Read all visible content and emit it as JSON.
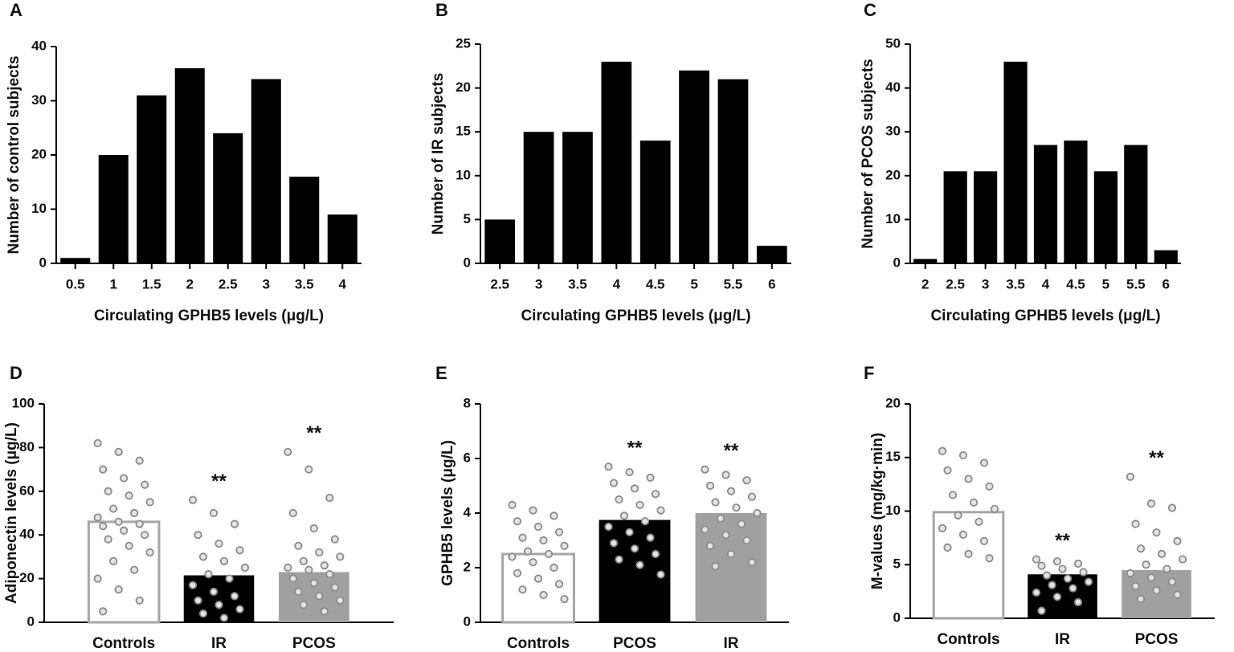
{
  "chart_data": [
    {
      "type": "bar",
      "panel": "A",
      "categories": [
        "0.5",
        "1",
        "1.5",
        "2",
        "2.5",
        "3",
        "3.5",
        "4"
      ],
      "values": [
        1,
        20,
        31,
        36,
        24,
        34,
        16,
        9
      ],
      "color": "#000000",
      "ylim": [
        0,
        40
      ],
      "yticks": [
        0,
        10,
        20,
        30,
        40
      ],
      "xlabel": "Circulating GPHB5 levels (μg/L)",
      "ylabel": "Number of control subjects"
    },
    {
      "type": "bar",
      "panel": "B",
      "categories": [
        "2.5",
        "3",
        "3.5",
        "4",
        "4.5",
        "5",
        "5.5",
        "6"
      ],
      "values": [
        5,
        15,
        15,
        23,
        14,
        22,
        21,
        2
      ],
      "color": "#000000",
      "ylim": [
        0,
        25
      ],
      "yticks": [
        0,
        5,
        10,
        15,
        20,
        25
      ],
      "xlabel": "Circulating GPHB5 levels (μg/L)",
      "ylabel": "Number of IR subjects"
    },
    {
      "type": "bar",
      "panel": "C",
      "categories": [
        "2",
        "2.5",
        "3",
        "3.5",
        "4",
        "4.5",
        "5",
        "5.5",
        "6"
      ],
      "values": [
        1,
        21,
        21,
        46,
        27,
        28,
        21,
        27,
        3
      ],
      "color": "#000000",
      "ylim": [
        0,
        50
      ],
      "yticks": [
        0,
        10,
        20,
        30,
        40,
        50
      ],
      "xlabel": "Circulating GPHB5 levels (μg/L)",
      "ylabel": "Number of PCOS subjects"
    },
    {
      "type": "dotbar",
      "panel": "D",
      "categories": [
        "Controls",
        "IR",
        "PCOS"
      ],
      "values": [
        46,
        21.5,
        23
      ],
      "colors": [
        "#ffffff",
        "#000000",
        "#a0a0a0"
      ],
      "edgecolor": "#a6a6a6",
      "dotcolor": "#8a8a8a",
      "annotations": [
        null,
        "**",
        "**"
      ],
      "ylim": [
        0,
        100
      ],
      "yticks": [
        0,
        20,
        40,
        60,
        80,
        100
      ],
      "ylabel": "Adiponectin levels (μg/L)",
      "points": [
        [
          82,
          78,
          74,
          70,
          66,
          63,
          60,
          58,
          55,
          52,
          50,
          48,
          46,
          45,
          44,
          42,
          40,
          38,
          35,
          32,
          28,
          24,
          20,
          15,
          10,
          5
        ],
        [
          56,
          50,
          45,
          40,
          36,
          33,
          30,
          28,
          25,
          22,
          20,
          17,
          14,
          12,
          10,
          8,
          6,
          4,
          2
        ],
        [
          78,
          70,
          57,
          50,
          43,
          38,
          35,
          32,
          30,
          28,
          26,
          25,
          24,
          22,
          20,
          18,
          16,
          14,
          12,
          10,
          8,
          5
        ]
      ]
    },
    {
      "type": "dotbar",
      "panel": "E",
      "categories": [
        "Controls",
        "PCOS",
        "IR"
      ],
      "values": [
        2.5,
        3.75,
        4.0
      ],
      "colors": [
        "#ffffff",
        "#000000",
        "#a0a0a0"
      ],
      "edgecolor": "#a6a6a6",
      "dotcolor": "#8a8a8a",
      "annotations": [
        null,
        "**",
        "**"
      ],
      "ylim": [
        0,
        8
      ],
      "yticks": [
        0,
        2,
        4,
        6,
        8
      ],
      "ylabel": "GPHB5 levels (μg/L)",
      "points": [
        [
          4.3,
          4.1,
          3.9,
          3.7,
          3.5,
          3.3,
          3.1,
          3.0,
          2.8,
          2.6,
          2.5,
          2.4,
          2.2,
          2.0,
          1.8,
          1.6,
          1.4,
          1.2,
          1.0,
          0.85
        ],
        [
          5.7,
          5.5,
          5.3,
          5.1,
          4.9,
          4.7,
          4.5,
          4.3,
          4.1,
          3.9,
          3.7,
          3.5,
          3.3,
          3.1,
          2.9,
          2.7,
          2.5,
          2.3,
          2.1,
          1.75
        ],
        [
          5.6,
          5.4,
          5.2,
          5.0,
          4.8,
          4.6,
          4.4,
          4.2,
          4.0,
          3.8,
          3.6,
          3.4,
          3.2,
          3.0,
          2.8,
          2.5,
          2.2,
          2.05
        ]
      ]
    },
    {
      "type": "dotbar",
      "panel": "F",
      "categories": [
        "Controls",
        "IR",
        "PCOS"
      ],
      "values": [
        9.9,
        4.1,
        4.5
      ],
      "colors": [
        "#ffffff",
        "#000000",
        "#a0a0a0"
      ],
      "edgecolor": "#a6a6a6",
      "dotcolor": "#8a8a8a",
      "annotations": [
        null,
        "**",
        "**"
      ],
      "ylim": [
        0,
        20
      ],
      "yticks": [
        0,
        5,
        10,
        15,
        20
      ],
      "ylabel": "M-values (mg/kg·min)",
      "points": [
        [
          15.6,
          15.2,
          14.5,
          13.8,
          13.0,
          12.3,
          11.5,
          10.8,
          10.2,
          9.6,
          9.0,
          8.4,
          7.8,
          7.2,
          6.6,
          6.0,
          5.6
        ],
        [
          5.5,
          5.3,
          5.1,
          4.9,
          4.6,
          4.3,
          4.0,
          3.7,
          3.4,
          3.1,
          2.8,
          2.4,
          2.0,
          1.5,
          0.7
        ],
        [
          13.2,
          10.7,
          10.3,
          8.8,
          8.0,
          7.2,
          6.5,
          6.0,
          5.5,
          5.0,
          4.6,
          4.2,
          3.8,
          3.4,
          3.0,
          2.6,
          2.2,
          1.8
        ]
      ]
    }
  ]
}
